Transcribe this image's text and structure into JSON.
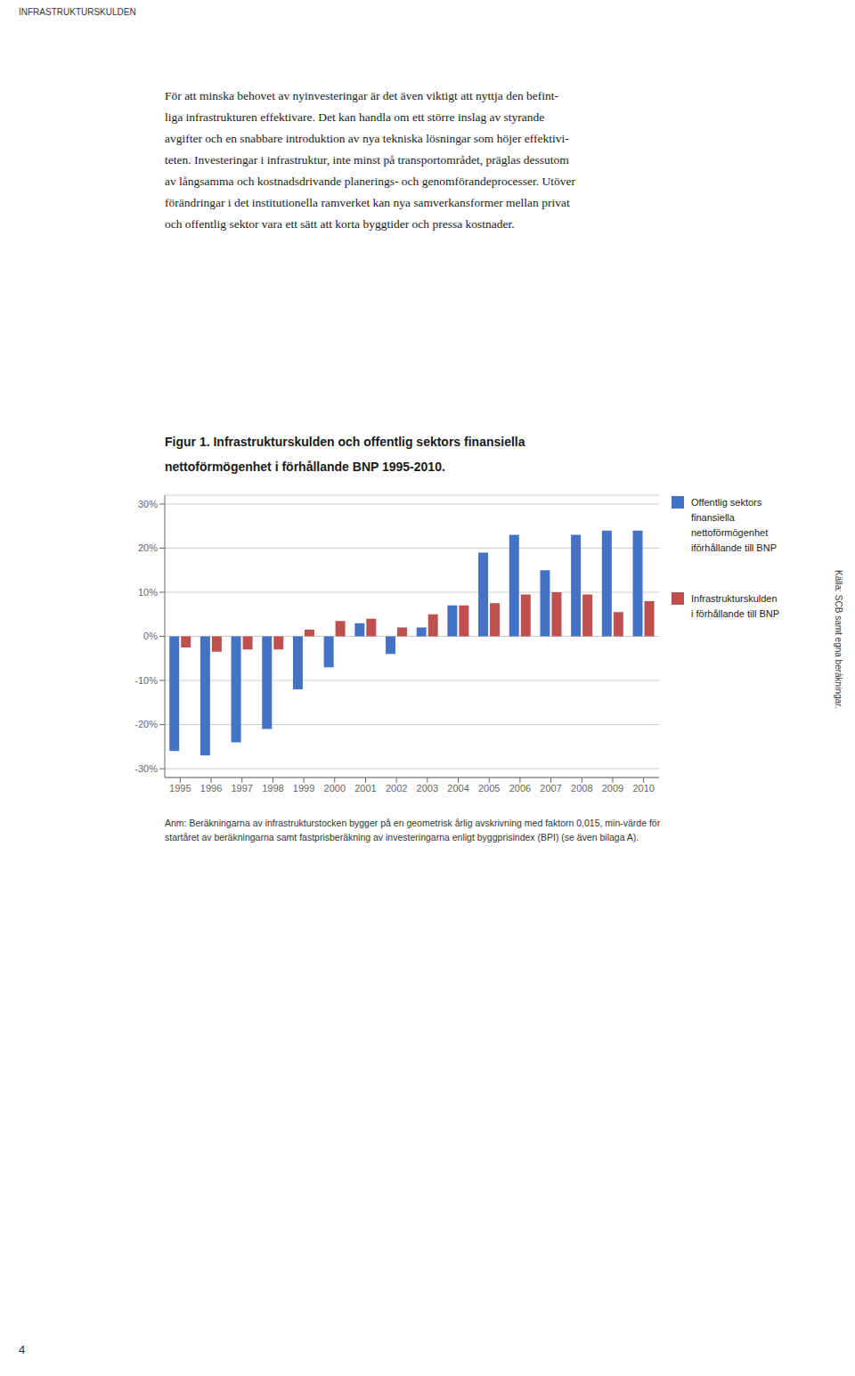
{
  "chart_data": {
    "type": "bar",
    "title": "Figur 1. Infrastrukturskulden och offentlig sektors finansiella\nnettoförmögenhet i förhållande BNP 1995-2010.",
    "categories": [
      1995,
      1996,
      1997,
      1998,
      1999,
      2000,
      2001,
      2002,
      2003,
      2004,
      2005,
      2006,
      2007,
      2008,
      2009,
      2010
    ],
    "series": [
      {
        "name": "Offentlig sektors\nfinansiella\nnettoförmögenhet\niförhållande till BNP",
        "color": "#4472C4",
        "values": [
          -26,
          -27,
          -24,
          -21,
          -12,
          -7,
          3,
          -4,
          2,
          7,
          19,
          23,
          15,
          23,
          24,
          24
        ]
      },
      {
        "name": "Infrastrukturskulden\ni förhållande till BNP",
        "color": "#C0504D",
        "values": [
          -2.5,
          -3.5,
          -3.0,
          -3.0,
          1.5,
          3.5,
          4.0,
          2.0,
          5.0,
          7.0,
          7.5,
          9.5,
          10.0,
          9.5,
          5.5,
          8.0
        ]
      }
    ],
    "ylim": [
      -32,
      32
    ],
    "yticks": [
      {
        "value": -30,
        "label": "-30%"
      },
      {
        "value": -20,
        "label": "-20%"
      },
      {
        "value": -10,
        "label": "-10%"
      },
      {
        "value": 0,
        "label": "0%"
      },
      {
        "value": 10,
        "label": "10%"
      },
      {
        "value": 20,
        "label": "20%"
      },
      {
        "value": 30,
        "label": "30%"
      }
    ],
    "grid": true,
    "legend": "right",
    "annotations": [
      "INFRASTRUKTURSKULDEN",
      "För att minska behovet av nyinvesteringar är det även viktigt att nyttja den befint-\nliga infrastrukturen effektivare. Det kan handla om ett större inslag av styrande\navgifter och en snabbare introduktion av nya tekniska lösningar som höjer effektivi-\nteten. Investeringar i infrastruktur, inte minst på transportområdet, präglas dessutom\nav långsamma och kostnadsdrivande planerings- och genomförandeprocesser. Utöver\nförändringar i det institutionella ramverket kan nya samverkansformer mellan privat\noch offentlig sektor vara ett sätt att korta byggtider och pressa kostnader.",
      "Källa: SCB samt egna beräkningar.",
      "Anm: Beräkningarna av infrastrukturstocken bygger på en geometrisk årlig avskrivning med faktorn 0,015, min-värde för\nstartåret av beräkningarna samt fastprisberäkning av investeringarna enligt byggprisindex (BPI) (se även bilaga A).",
      "4"
    ]
  }
}
